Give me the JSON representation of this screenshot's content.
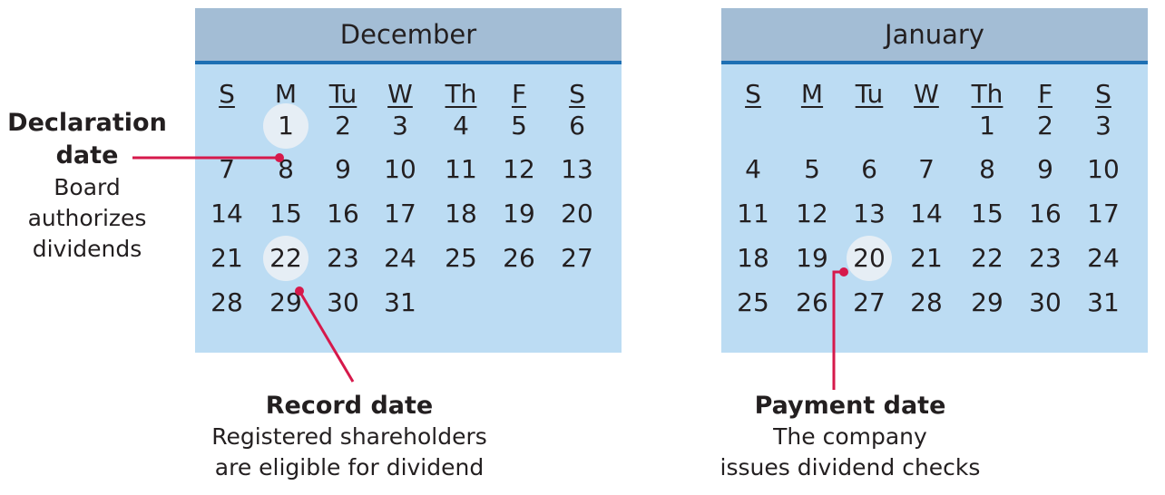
{
  "colors": {
    "calendar_bg": "#bcdcf3",
    "header_bg": "#a3bdd5",
    "header_rule": "#1d6fb3",
    "highlight": "#e6eef5",
    "leader_line": "#d6194b",
    "text": "#231f20"
  },
  "weekdays": [
    "S",
    "M",
    "Tu",
    "W",
    "Th",
    "F",
    "S"
  ],
  "calendars": [
    {
      "month": "December",
      "start_weekday": 1,
      "days": 31,
      "highlighted": [
        1,
        22
      ]
    },
    {
      "month": "January",
      "start_weekday": 4,
      "days": 31,
      "highlighted": [
        20
      ]
    }
  ],
  "annotations": {
    "declaration": {
      "title": "Declaration date",
      "lines": [
        "Board",
        "authorizes",
        "dividends"
      ],
      "month": "December",
      "day": 1
    },
    "record": {
      "title": "Record date",
      "lines": [
        "Registered shareholders",
        "are eligible for dividend"
      ],
      "month": "December",
      "day": 22
    },
    "payment": {
      "title": "Payment date",
      "lines": [
        "The company",
        "issues dividend checks"
      ],
      "month": "January",
      "day": 20
    }
  }
}
